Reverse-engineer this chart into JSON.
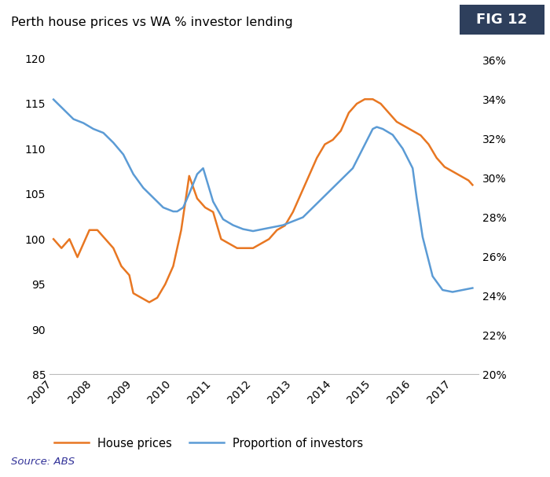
{
  "title": "Perth house prices vs WA % investor lending",
  "fig_label": "FIG 12",
  "source": "Source: ABS",
  "left_ylim": [
    85,
    122
  ],
  "right_ylim": [
    20,
    37
  ],
  "left_yticks": [
    85,
    90,
    95,
    100,
    105,
    110,
    115,
    120
  ],
  "right_yticks": [
    20,
    22,
    24,
    26,
    28,
    30,
    32,
    34,
    36
  ],
  "house_prices_color": "#E87722",
  "investors_color": "#5B9BD5",
  "house_prices_label": "House prices",
  "investors_label": "Proportion of investors",
  "background_color": "#FFFFFF",
  "fig_label_bg": "#2E3F5C",
  "fig_label_color": "#FFFFFF",
  "house_prices_x": [
    2007.0,
    2007.1,
    2007.2,
    2007.3,
    2007.4,
    2007.5,
    2007.6,
    2007.7,
    2007.8,
    2007.9,
    2008.0,
    2008.1,
    2008.2,
    2008.3,
    2008.5,
    2008.7,
    2008.9,
    2009.0,
    2009.2,
    2009.4,
    2009.6,
    2009.8,
    2010.0,
    2010.2,
    2010.4,
    2010.6,
    2010.8,
    2011.0,
    2011.2,
    2011.4,
    2011.6,
    2011.8,
    2012.0,
    2012.2,
    2012.4,
    2012.6,
    2012.8,
    2013.0,
    2013.2,
    2013.4,
    2013.6,
    2013.8,
    2014.0,
    2014.2,
    2014.4,
    2014.6,
    2014.8,
    2015.0,
    2015.2,
    2015.4,
    2015.6,
    2015.8,
    2016.0,
    2016.2,
    2016.4,
    2016.6,
    2016.8,
    2017.0,
    2017.2,
    2017.4,
    2017.5
  ],
  "house_prices_y": [
    100,
    99.5,
    99,
    99.5,
    100,
    99,
    98,
    99,
    100,
    101,
    101,
    101,
    100.5,
    100,
    99,
    97,
    96,
    94,
    93.5,
    93,
    93.5,
    95,
    97,
    101,
    107,
    104.5,
    103.5,
    103,
    100,
    99.5,
    99,
    99,
    99,
    99.5,
    100,
    101,
    101.5,
    103,
    105,
    107,
    109,
    110.5,
    111,
    112,
    114,
    115,
    115.5,
    115.5,
    115,
    114,
    113,
    112.5,
    112,
    111.5,
    110.5,
    109,
    108,
    107.5,
    107,
    106.5,
    106
  ],
  "investors_x": [
    2007.0,
    2007.25,
    2007.5,
    2007.75,
    2008.0,
    2008.25,
    2008.5,
    2008.75,
    2009.0,
    2009.25,
    2009.5,
    2009.75,
    2010.0,
    2010.1,
    2010.25,
    2010.4,
    2010.6,
    2010.75,
    2011.0,
    2011.25,
    2011.5,
    2011.75,
    2012.0,
    2012.25,
    2012.5,
    2012.75,
    2013.0,
    2013.25,
    2013.5,
    2013.75,
    2014.0,
    2014.25,
    2014.5,
    2014.75,
    2015.0,
    2015.1,
    2015.25,
    2015.5,
    2015.75,
    2016.0,
    2016.1,
    2016.25,
    2016.5,
    2016.75,
    2017.0,
    2017.25,
    2017.5
  ],
  "investors_y": [
    34.0,
    33.5,
    33.0,
    32.8,
    32.5,
    32.3,
    31.8,
    31.2,
    30.2,
    29.5,
    29.0,
    28.5,
    28.3,
    28.3,
    28.5,
    29.2,
    30.2,
    30.5,
    28.8,
    27.9,
    27.6,
    27.4,
    27.3,
    27.4,
    27.5,
    27.6,
    27.8,
    28.0,
    28.5,
    29.0,
    29.5,
    30.0,
    30.5,
    31.5,
    32.5,
    32.6,
    32.5,
    32.2,
    31.5,
    30.5,
    29.0,
    27.0,
    25.0,
    24.3,
    24.2,
    24.3,
    24.4
  ]
}
